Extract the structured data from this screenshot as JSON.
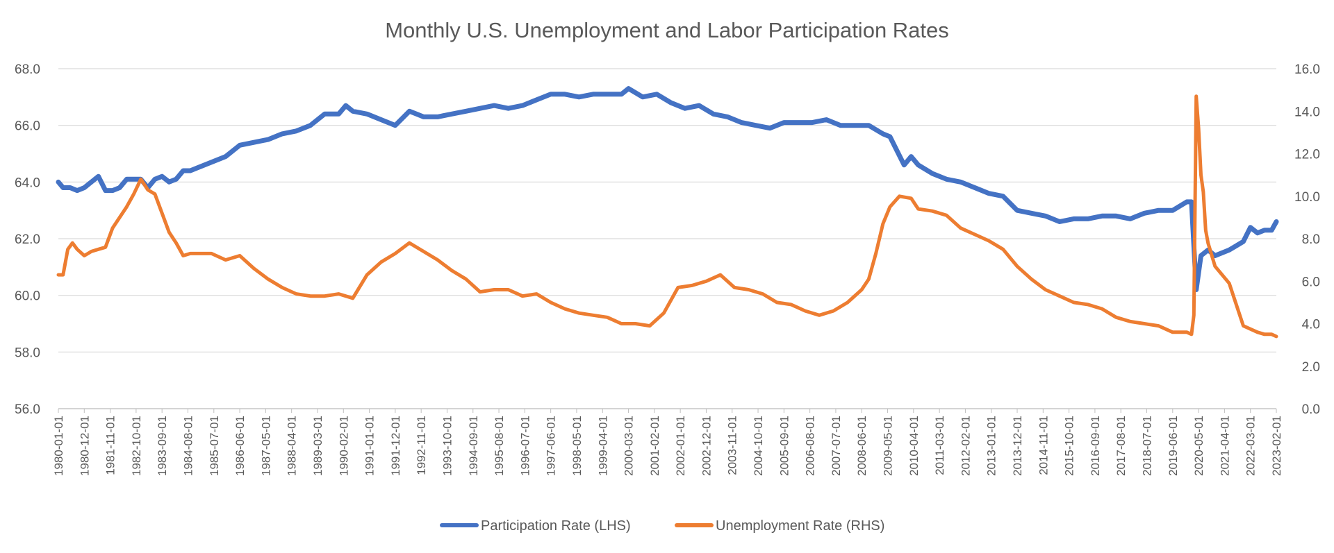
{
  "chart_data": {
    "type": "line",
    "title": "Monthly U.S. Unemployment and Labor Participation Rates",
    "y_left": {
      "min": 56,
      "max": 68,
      "step": 2,
      "tick_labels": [
        "56.0",
        "58.0",
        "60.0",
        "62.0",
        "64.0",
        "66.0",
        "68.0"
      ]
    },
    "y_right": {
      "min": 0,
      "max": 16,
      "step": 2,
      "tick_labels": [
        "0.0",
        "2.0",
        "4.0",
        "6.0",
        "8.0",
        "10.0",
        "12.0",
        "14.0",
        "16.0"
      ]
    },
    "x_range": [
      "1980-01-01",
      "2023-02-01"
    ],
    "x_tick_labels": [
      "1980-01-01",
      "1980-12-01",
      "1981-11-01",
      "1982-10-01",
      "1983-09-01",
      "1984-08-01",
      "1985-07-01",
      "1986-06-01",
      "1987-05-01",
      "1988-04-01",
      "1989-03-01",
      "1990-02-01",
      "1991-01-01",
      "1991-12-01",
      "1992-11-01",
      "1993-10-01",
      "1994-09-01",
      "1995-08-01",
      "1996-07-01",
      "1997-06-01",
      "1998-05-01",
      "1999-04-01",
      "2000-03-01",
      "2001-02-01",
      "2002-01-01",
      "2002-12-01",
      "2003-11-01",
      "2004-10-01",
      "2005-09-01",
      "2006-08-01",
      "2007-07-01",
      "2008-06-01",
      "2009-05-01",
      "2010-04-01",
      "2011-03-01",
      "2012-02-01",
      "2013-01-01",
      "2013-12-01",
      "2014-11-01",
      "2015-10-01",
      "2016-09-01",
      "2017-08-01",
      "2018-07-01",
      "2019-06-01",
      "2020-05-01",
      "2021-04-01",
      "2022-03-01",
      "2023-02-01"
    ],
    "grid": true,
    "legend_position": "bottom",
    "series": [
      {
        "name": "Participation Rate (LHS)",
        "axis": "left",
        "color": "#4472C4",
        "points": [
          [
            "1980-01-01",
            64.0
          ],
          [
            "1980-03-01",
            63.8
          ],
          [
            "1980-06-01",
            63.8
          ],
          [
            "1980-09-01",
            63.7
          ],
          [
            "1980-12-01",
            63.8
          ],
          [
            "1981-03-01",
            64.0
          ],
          [
            "1981-06-01",
            64.2
          ],
          [
            "1981-09-01",
            63.7
          ],
          [
            "1981-12-01",
            63.7
          ],
          [
            "1982-03-01",
            63.8
          ],
          [
            "1982-06-01",
            64.1
          ],
          [
            "1982-09-01",
            64.1
          ],
          [
            "1982-12-01",
            64.1
          ],
          [
            "1983-03-01",
            63.8
          ],
          [
            "1983-06-01",
            64.1
          ],
          [
            "1983-09-01",
            64.2
          ],
          [
            "1983-12-01",
            64.0
          ],
          [
            "1984-03-01",
            64.1
          ],
          [
            "1984-06-01",
            64.4
          ],
          [
            "1984-09-01",
            64.4
          ],
          [
            "1984-12-01",
            64.5
          ],
          [
            "1985-06-01",
            64.7
          ],
          [
            "1985-12-01",
            64.9
          ],
          [
            "1986-06-01",
            65.3
          ],
          [
            "1986-12-01",
            65.4
          ],
          [
            "1987-06-01",
            65.5
          ],
          [
            "1987-12-01",
            65.7
          ],
          [
            "1988-06-01",
            65.8
          ],
          [
            "1988-12-01",
            66.0
          ],
          [
            "1989-06-01",
            66.4
          ],
          [
            "1989-12-01",
            66.4
          ],
          [
            "1990-03-01",
            66.7
          ],
          [
            "1990-06-01",
            66.5
          ],
          [
            "1990-12-01",
            66.4
          ],
          [
            "1991-06-01",
            66.2
          ],
          [
            "1991-12-01",
            66.0
          ],
          [
            "1992-06-01",
            66.5
          ],
          [
            "1992-09-01",
            66.4
          ],
          [
            "1992-12-01",
            66.3
          ],
          [
            "1993-06-01",
            66.3
          ],
          [
            "1993-12-01",
            66.4
          ],
          [
            "1994-06-01",
            66.5
          ],
          [
            "1994-12-01",
            66.6
          ],
          [
            "1995-06-01",
            66.7
          ],
          [
            "1995-12-01",
            66.6
          ],
          [
            "1996-06-01",
            66.7
          ],
          [
            "1996-12-01",
            66.9
          ],
          [
            "1997-06-01",
            67.1
          ],
          [
            "1997-12-01",
            67.1
          ],
          [
            "1998-06-01",
            67.0
          ],
          [
            "1998-12-01",
            67.1
          ],
          [
            "1999-06-01",
            67.1
          ],
          [
            "1999-12-01",
            67.1
          ],
          [
            "2000-03-01",
            67.3
          ],
          [
            "2000-09-01",
            67.0
          ],
          [
            "2001-03-01",
            67.1
          ],
          [
            "2001-09-01",
            66.8
          ],
          [
            "2002-03-01",
            66.6
          ],
          [
            "2002-09-01",
            66.7
          ],
          [
            "2003-03-01",
            66.4
          ],
          [
            "2003-09-01",
            66.3
          ],
          [
            "2004-03-01",
            66.1
          ],
          [
            "2004-09-01",
            66.0
          ],
          [
            "2005-03-01",
            65.9
          ],
          [
            "2005-09-01",
            66.1
          ],
          [
            "2006-03-01",
            66.1
          ],
          [
            "2006-09-01",
            66.1
          ],
          [
            "2007-03-01",
            66.2
          ],
          [
            "2007-09-01",
            66.0
          ],
          [
            "2008-03-01",
            66.0
          ],
          [
            "2008-09-01",
            66.0
          ],
          [
            "2009-03-01",
            65.7
          ],
          [
            "2009-06-01",
            65.6
          ],
          [
            "2009-09-01",
            65.1
          ],
          [
            "2009-12-01",
            64.6
          ],
          [
            "2010-03-01",
            64.9
          ],
          [
            "2010-06-01",
            64.6
          ],
          [
            "2010-12-01",
            64.3
          ],
          [
            "2011-06-01",
            64.1
          ],
          [
            "2011-12-01",
            64.0
          ],
          [
            "2012-06-01",
            63.8
          ],
          [
            "2012-12-01",
            63.6
          ],
          [
            "2013-06-01",
            63.5
          ],
          [
            "2013-12-01",
            63.0
          ],
          [
            "2014-06-01",
            62.9
          ],
          [
            "2014-12-01",
            62.8
          ],
          [
            "2015-06-01",
            62.6
          ],
          [
            "2015-12-01",
            62.7
          ],
          [
            "2016-06-01",
            62.7
          ],
          [
            "2016-12-01",
            62.8
          ],
          [
            "2017-06-01",
            62.8
          ],
          [
            "2017-12-01",
            62.7
          ],
          [
            "2018-06-01",
            62.9
          ],
          [
            "2018-12-01",
            63.0
          ],
          [
            "2019-06-01",
            63.0
          ],
          [
            "2019-12-01",
            63.3
          ],
          [
            "2020-02-01",
            63.3
          ],
          [
            "2020-04-01",
            60.2
          ],
          [
            "2020-06-01",
            61.4
          ],
          [
            "2020-09-01",
            61.6
          ],
          [
            "2020-12-01",
            61.4
          ],
          [
            "2021-06-01",
            61.6
          ],
          [
            "2021-12-01",
            61.9
          ],
          [
            "2022-03-01",
            62.4
          ],
          [
            "2022-06-01",
            62.2
          ],
          [
            "2022-09-01",
            62.3
          ],
          [
            "2022-12-01",
            62.3
          ],
          [
            "2023-02-01",
            62.6
          ]
        ]
      },
      {
        "name": "Unemployment Rate (RHS)",
        "axis": "right",
        "color": "#ED7D31",
        "points": [
          [
            "1980-01-01",
            6.3
          ],
          [
            "1980-03-01",
            6.3
          ],
          [
            "1980-05-01",
            7.5
          ],
          [
            "1980-07-01",
            7.8
          ],
          [
            "1980-09-01",
            7.5
          ],
          [
            "1980-12-01",
            7.2
          ],
          [
            "1981-03-01",
            7.4
          ],
          [
            "1981-06-01",
            7.5
          ],
          [
            "1981-09-01",
            7.6
          ],
          [
            "1981-12-01",
            8.5
          ],
          [
            "1982-03-01",
            9.0
          ],
          [
            "1982-06-01",
            9.5
          ],
          [
            "1982-09-01",
            10.1
          ],
          [
            "1982-12-01",
            10.8
          ],
          [
            "1983-03-01",
            10.3
          ],
          [
            "1983-06-01",
            10.1
          ],
          [
            "1983-09-01",
            9.2
          ],
          [
            "1983-12-01",
            8.3
          ],
          [
            "1984-03-01",
            7.8
          ],
          [
            "1984-06-01",
            7.2
          ],
          [
            "1984-09-01",
            7.3
          ],
          [
            "1984-12-01",
            7.3
          ],
          [
            "1985-06-01",
            7.3
          ],
          [
            "1985-12-01",
            7.0
          ],
          [
            "1986-06-01",
            7.2
          ],
          [
            "1986-12-01",
            6.6
          ],
          [
            "1987-06-01",
            6.1
          ],
          [
            "1987-12-01",
            5.7
          ],
          [
            "1988-06-01",
            5.4
          ],
          [
            "1988-12-01",
            5.3
          ],
          [
            "1989-06-01",
            5.3
          ],
          [
            "1989-12-01",
            5.4
          ],
          [
            "1990-06-01",
            5.2
          ],
          [
            "1990-12-01",
            6.3
          ],
          [
            "1991-06-01",
            6.9
          ],
          [
            "1991-12-01",
            7.3
          ],
          [
            "1992-06-01",
            7.8
          ],
          [
            "1992-12-01",
            7.4
          ],
          [
            "1993-06-01",
            7.0
          ],
          [
            "1993-12-01",
            6.5
          ],
          [
            "1994-06-01",
            6.1
          ],
          [
            "1994-12-01",
            5.5
          ],
          [
            "1995-06-01",
            5.6
          ],
          [
            "1995-12-01",
            5.6
          ],
          [
            "1996-06-01",
            5.3
          ],
          [
            "1996-12-01",
            5.4
          ],
          [
            "1997-06-01",
            5.0
          ],
          [
            "1997-12-01",
            4.7
          ],
          [
            "1998-06-01",
            4.5
          ],
          [
            "1998-12-01",
            4.4
          ],
          [
            "1999-06-01",
            4.3
          ],
          [
            "1999-12-01",
            4.0
          ],
          [
            "2000-06-01",
            4.0
          ],
          [
            "2000-12-01",
            3.9
          ],
          [
            "2001-06-01",
            4.5
          ],
          [
            "2001-12-01",
            5.7
          ],
          [
            "2002-06-01",
            5.8
          ],
          [
            "2002-12-01",
            6.0
          ],
          [
            "2003-06-01",
            6.3
          ],
          [
            "2003-12-01",
            5.7
          ],
          [
            "2004-06-01",
            5.6
          ],
          [
            "2004-12-01",
            5.4
          ],
          [
            "2005-06-01",
            5.0
          ],
          [
            "2005-12-01",
            4.9
          ],
          [
            "2006-06-01",
            4.6
          ],
          [
            "2006-12-01",
            4.4
          ],
          [
            "2007-06-01",
            4.6
          ],
          [
            "2007-12-01",
            5.0
          ],
          [
            "2008-06-01",
            5.6
          ],
          [
            "2008-09-01",
            6.1
          ],
          [
            "2008-12-01",
            7.3
          ],
          [
            "2009-03-01",
            8.7
          ],
          [
            "2009-06-01",
            9.5
          ],
          [
            "2009-10-01",
            10.0
          ],
          [
            "2010-03-01",
            9.9
          ],
          [
            "2010-06-01",
            9.4
          ],
          [
            "2010-12-01",
            9.3
          ],
          [
            "2011-06-01",
            9.1
          ],
          [
            "2011-12-01",
            8.5
          ],
          [
            "2012-06-01",
            8.2
          ],
          [
            "2012-12-01",
            7.9
          ],
          [
            "2013-06-01",
            7.5
          ],
          [
            "2013-12-01",
            6.7
          ],
          [
            "2014-06-01",
            6.1
          ],
          [
            "2014-12-01",
            5.6
          ],
          [
            "2015-06-01",
            5.3
          ],
          [
            "2015-12-01",
            5.0
          ],
          [
            "2016-06-01",
            4.9
          ],
          [
            "2016-12-01",
            4.7
          ],
          [
            "2017-06-01",
            4.3
          ],
          [
            "2017-12-01",
            4.1
          ],
          [
            "2018-06-01",
            4.0
          ],
          [
            "2018-12-01",
            3.9
          ],
          [
            "2019-06-01",
            3.6
          ],
          [
            "2019-12-01",
            3.6
          ],
          [
            "2020-02-01",
            3.5
          ],
          [
            "2020-03-01",
            4.4
          ],
          [
            "2020-04-01",
            14.7
          ],
          [
            "2020-05-01",
            13.2
          ],
          [
            "2020-06-01",
            11.0
          ],
          [
            "2020-07-01",
            10.2
          ],
          [
            "2020-08-01",
            8.4
          ],
          [
            "2020-09-01",
            7.8
          ],
          [
            "2020-12-01",
            6.7
          ],
          [
            "2021-06-01",
            5.9
          ],
          [
            "2021-12-01",
            3.9
          ],
          [
            "2022-06-01",
            3.6
          ],
          [
            "2022-09-01",
            3.5
          ],
          [
            "2022-12-01",
            3.5
          ],
          [
            "2023-02-01",
            3.4
          ]
        ]
      }
    ]
  }
}
